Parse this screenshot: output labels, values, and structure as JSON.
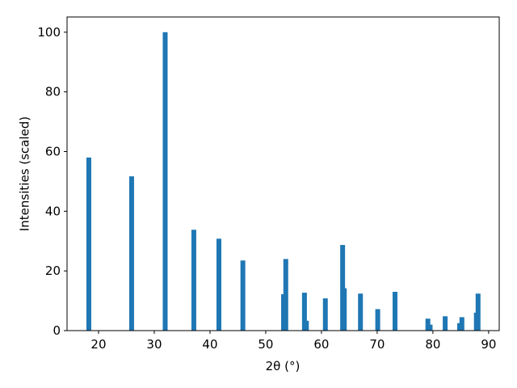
{
  "chart_data": {
    "type": "bar",
    "x": [
      18.26,
      25.94,
      31.96,
      37.1,
      41.6,
      45.9,
      53.2,
      53.6,
      56.95,
      57.3,
      60.7,
      63.8,
      64.1,
      67.0,
      70.1,
      73.2,
      79.1,
      79.5,
      82.2,
      84.8,
      85.2,
      87.8,
      88.1
    ],
    "values": [
      58,
      51.7,
      100,
      33.8,
      30.8,
      23.5,
      12.2,
      24,
      12.7,
      3.3,
      10.8,
      28.7,
      14.2,
      12.4,
      7.2,
      13,
      4,
      2,
      4.8,
      2.5,
      4.5,
      6,
      12.4
    ],
    "color": "#1f77b4",
    "xlabel": "2θ (°)",
    "ylabel": "Intensities (scaled)",
    "xlim": [
      14.35,
      91.9
    ],
    "ylim": [
      0,
      105.1
    ],
    "xticks": [
      20,
      30,
      40,
      50,
      60,
      70,
      80,
      90
    ],
    "yticks": [
      0,
      20,
      40,
      60,
      80,
      100
    ]
  }
}
